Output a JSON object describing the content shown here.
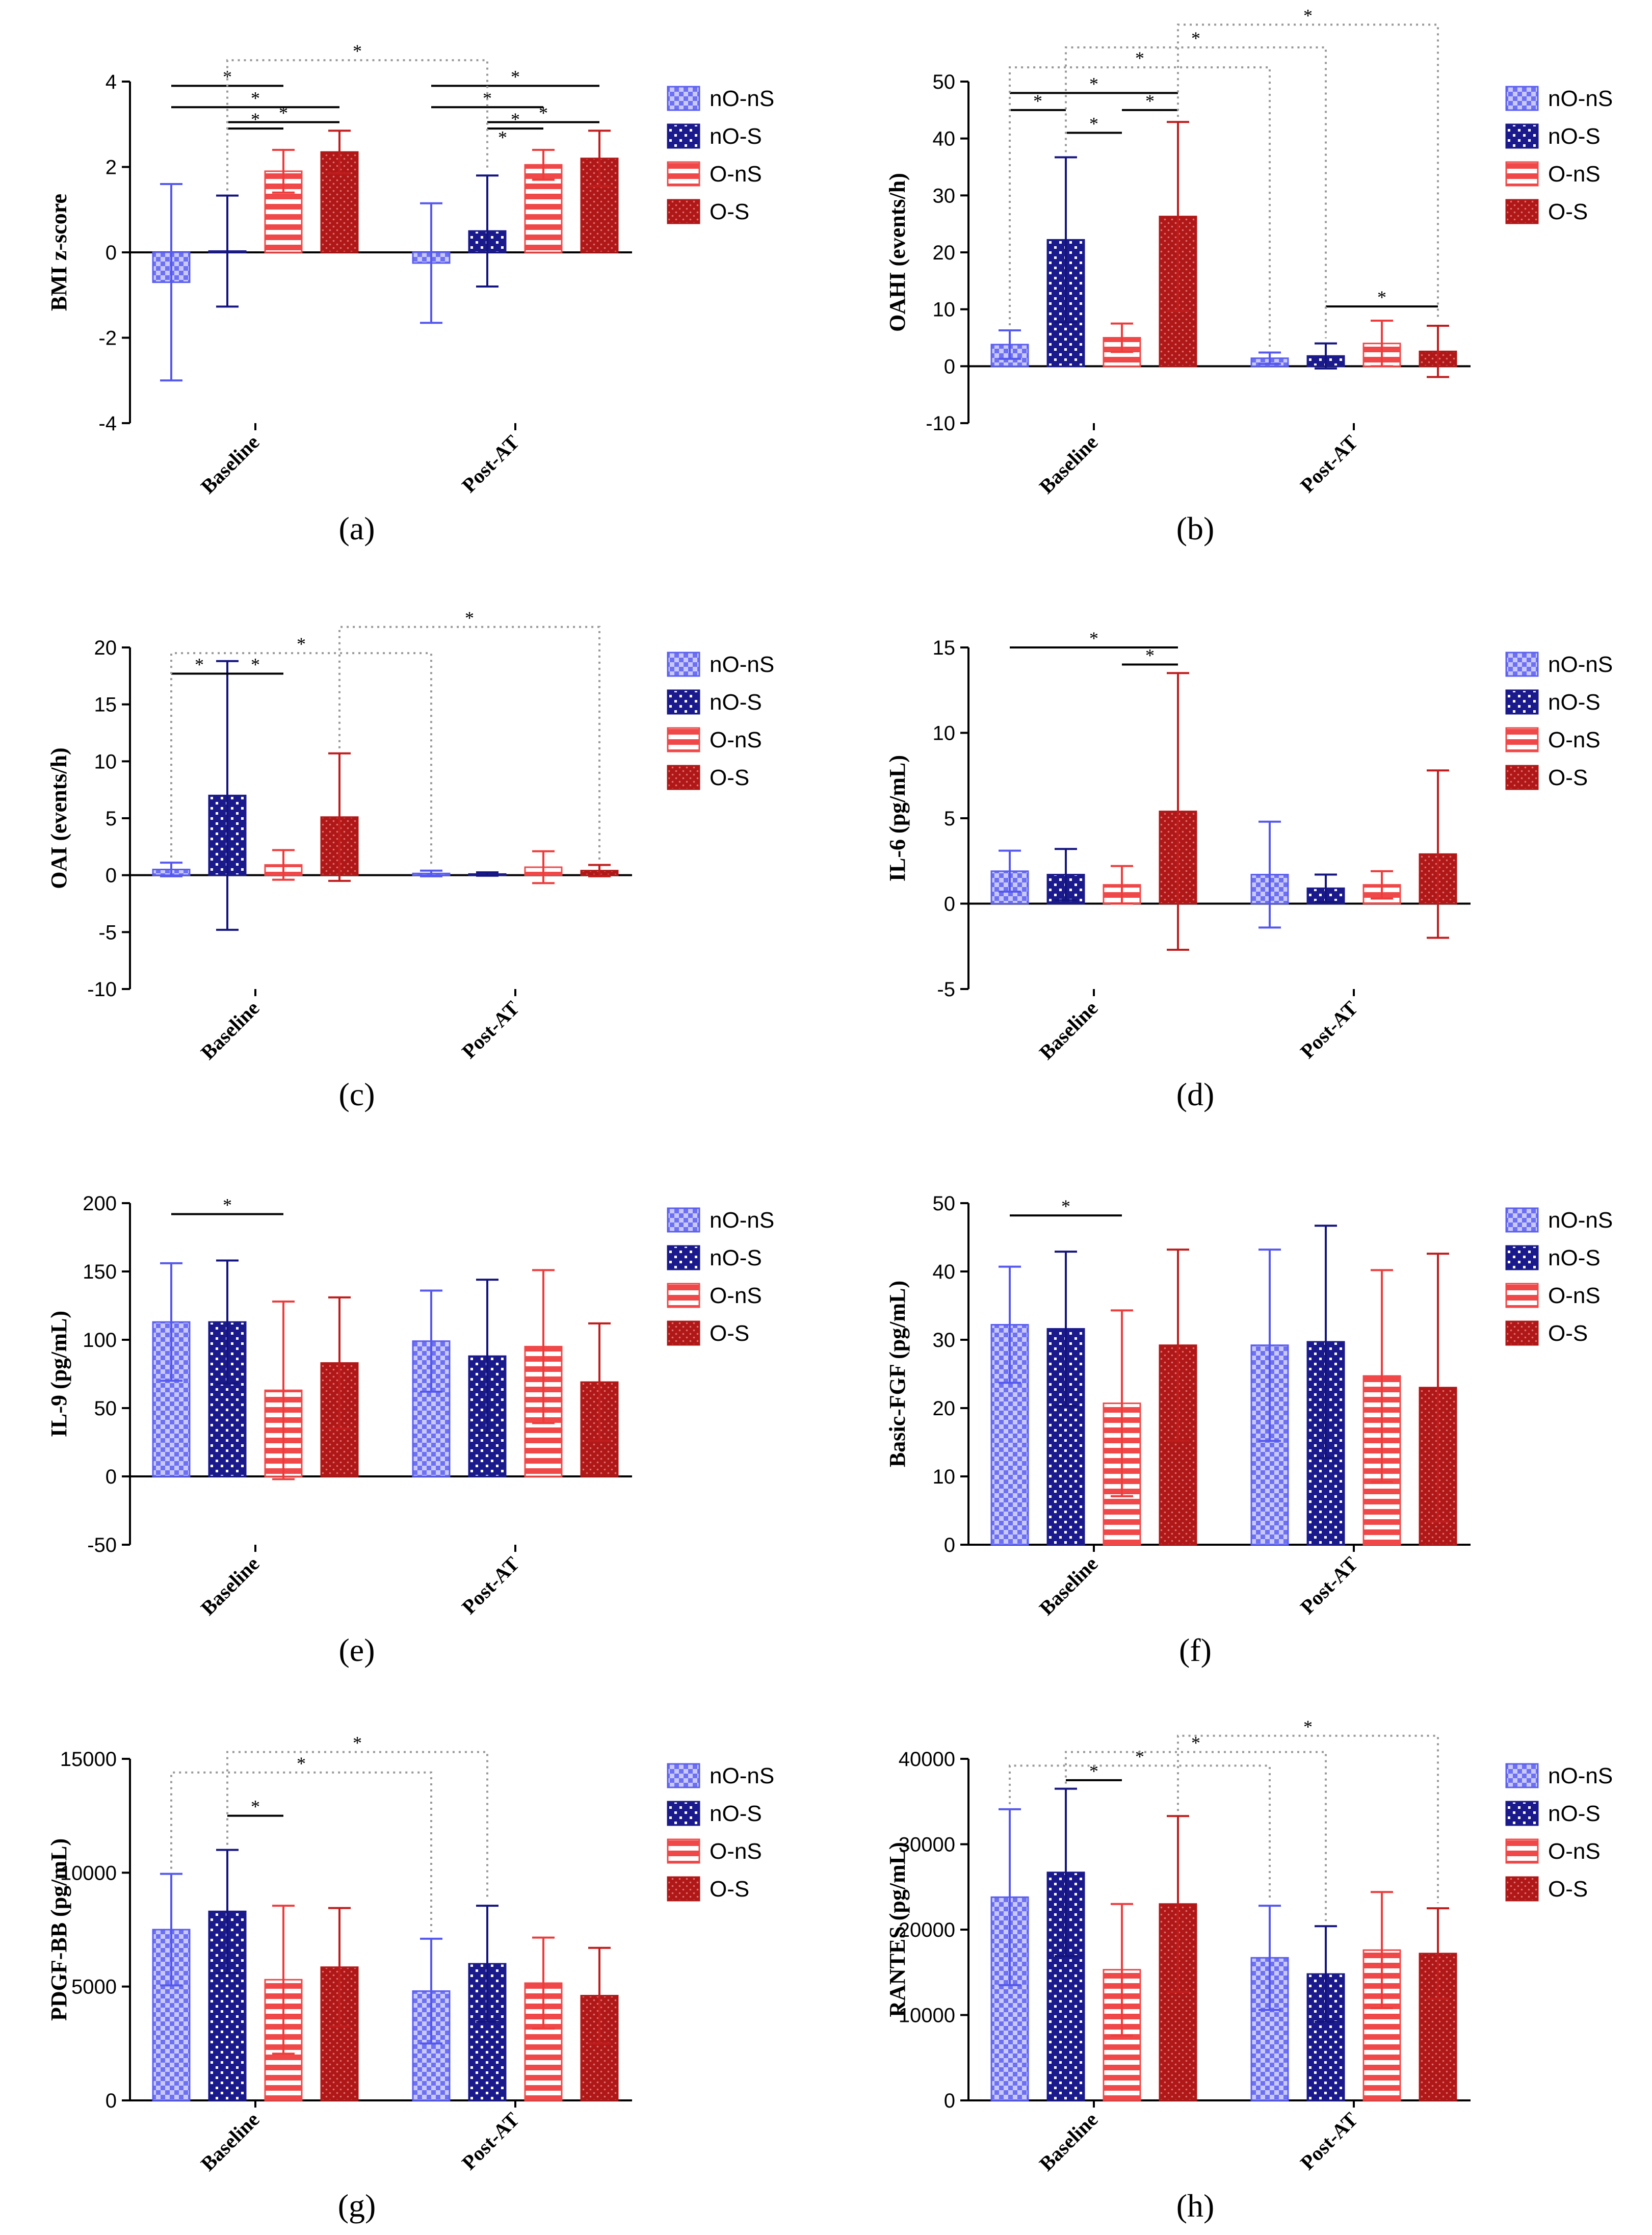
{
  "figure": {
    "group_names": [
      "nO-nS",
      "nO-S",
      "O-nS",
      "O-S"
    ],
    "legend": [
      "nO-nS",
      "nO-S",
      "O-nS",
      "O-S"
    ],
    "colors": {
      "nO-nS": "#5a5ef0",
      "nO-S": "#1a1a8c",
      "O-nS": "#f04848",
      "O-S": "#b01818"
    }
  },
  "chart_data": [
    {
      "id": "a",
      "panel_label": "(a)",
      "type": "bar",
      "title": "",
      "xlabel": "",
      "ylabel": "BMI z-score",
      "ylim": [
        -4,
        4
      ],
      "ytick_values": [
        -4,
        -2,
        0,
        2,
        4
      ],
      "ytick_labels": [
        "-4",
        "-2",
        "0",
        "2",
        "4"
      ],
      "categories": [
        "Baseline",
        "Post-AT"
      ],
      "series": [
        {
          "name": "nO-nS",
          "values": [
            -0.7,
            -0.25
          ],
          "err": [
            2.3,
            1.4
          ]
        },
        {
          "name": "nO-S",
          "values": [
            0.03,
            0.5
          ],
          "err": [
            1.3,
            1.3
          ]
        },
        {
          "name": "O-nS",
          "values": [
            1.9,
            2.05
          ],
          "err": [
            0.5,
            0.35
          ]
        },
        {
          "name": "O-S",
          "values": [
            2.35,
            2.2
          ],
          "err": [
            0.5,
            0.65
          ]
        }
      ],
      "significance": [
        {
          "from": [
            0,
            0
          ],
          "to": [
            0,
            2
          ],
          "y": 3.9,
          "label": "*",
          "style": "solid"
        },
        {
          "from": [
            0,
            0
          ],
          "to": [
            0,
            3
          ],
          "y": 3.4,
          "label": "*",
          "style": "solid"
        },
        {
          "from": [
            0,
            1
          ],
          "to": [
            0,
            2
          ],
          "y": 2.9,
          "label": "*",
          "style": "solid"
        },
        {
          "from": [
            0,
            1
          ],
          "to": [
            0,
            3
          ],
          "y": 3.05,
          "label": "*",
          "style": "solid"
        },
        {
          "from": [
            1,
            0
          ],
          "to": [
            1,
            2
          ],
          "y": 3.4,
          "label": "*",
          "style": "solid"
        },
        {
          "from": [
            1,
            0
          ],
          "to": [
            1,
            3
          ],
          "y": 3.9,
          "label": "*",
          "style": "solid"
        },
        {
          "from": [
            1,
            1
          ],
          "to": [
            1,
            2
          ],
          "y": 2.9,
          "label": "*",
          "style": "solid"
        },
        {
          "from": [
            1,
            1
          ],
          "to": [
            1,
            3
          ],
          "y": 3.05,
          "label": "*",
          "style": "solid"
        },
        {
          "from": [
            0,
            1
          ],
          "to": [
            1,
            1
          ],
          "y": 4.5,
          "label": "*",
          "style": "dotted"
        }
      ],
      "extra_marks": [
        {
          "group": [
            1,
            1
          ],
          "y": 2.55,
          "label": "*"
        }
      ]
    },
    {
      "id": "b",
      "panel_label": "(b)",
      "type": "bar",
      "title": "",
      "xlabel": "",
      "ylabel": "OAHI (events/h)",
      "ylim": [
        -10,
        50
      ],
      "ytick_values": [
        -10,
        0,
        10,
        20,
        30,
        40,
        50
      ],
      "ytick_labels": [
        "-10",
        "0",
        "10",
        "20",
        "30",
        "40",
        "50"
      ],
      "categories": [
        "Baseline",
        "Post-AT"
      ],
      "series": [
        {
          "name": "nO-nS",
          "values": [
            3.8,
            1.4
          ],
          "err": [
            2.5,
            1.0
          ]
        },
        {
          "name": "nO-S",
          "values": [
            22.2,
            1.8
          ],
          "err": [
            14.5,
            2.2
          ]
        },
        {
          "name": "O-nS",
          "values": [
            5.0,
            4.0
          ],
          "err": [
            2.5,
            4.0
          ]
        },
        {
          "name": "O-S",
          "values": [
            26.3,
            2.6
          ],
          "err": [
            16.6,
            4.5
          ]
        }
      ],
      "significance": [
        {
          "from": [
            0,
            0
          ],
          "to": [
            0,
            1
          ],
          "y": 45,
          "label": "*",
          "style": "solid"
        },
        {
          "from": [
            0,
            0
          ],
          "to": [
            0,
            3
          ],
          "y": 48,
          "label": "*",
          "style": "solid"
        },
        {
          "from": [
            0,
            1
          ],
          "to": [
            0,
            2
          ],
          "y": 41,
          "label": "*",
          "style": "solid"
        },
        {
          "from": [
            0,
            2
          ],
          "to": [
            0,
            3
          ],
          "y": 45,
          "label": "*",
          "style": "solid"
        },
        {
          "from": [
            1,
            1
          ],
          "to": [
            1,
            3
          ],
          "y": 10.5,
          "label": "*",
          "style": "solid"
        },
        {
          "from": [
            0,
            0
          ],
          "to": [
            1,
            0
          ],
          "y": 52.5,
          "label": "*",
          "style": "dotted"
        },
        {
          "from": [
            0,
            1
          ],
          "to": [
            1,
            1
          ],
          "y": 56,
          "label": "*",
          "style": "dotted"
        },
        {
          "from": [
            0,
            3
          ],
          "to": [
            1,
            3
          ],
          "y": 60,
          "label": "*",
          "style": "dotted"
        }
      ],
      "extra_marks": []
    },
    {
      "id": "c",
      "panel_label": "(c)",
      "type": "bar",
      "title": "",
      "xlabel": "",
      "ylabel": "OAI (events/h)",
      "ylim": [
        -10,
        20
      ],
      "ytick_values": [
        -10,
        -5,
        0,
        5,
        10,
        15,
        20
      ],
      "ytick_labels": [
        "-10",
        "-5",
        "0",
        "5",
        "10",
        "15",
        "20"
      ],
      "categories": [
        "Baseline",
        "Post-AT"
      ],
      "series": [
        {
          "name": "nO-nS",
          "values": [
            0.5,
            0.15
          ],
          "err": [
            0.6,
            0.25
          ]
        },
        {
          "name": "nO-S",
          "values": [
            7.0,
            0.1
          ],
          "err": [
            11.8,
            0.15
          ]
        },
        {
          "name": "O-nS",
          "values": [
            0.9,
            0.7
          ],
          "err": [
            1.3,
            1.4
          ]
        },
        {
          "name": "O-S",
          "values": [
            5.1,
            0.4
          ],
          "err": [
            5.6,
            0.5
          ]
        }
      ],
      "significance": [
        {
          "from": [
            0,
            0
          ],
          "to": [
            0,
            1
          ],
          "y": 17.7,
          "label": "*",
          "style": "solid"
        },
        {
          "from": [
            0,
            1
          ],
          "to": [
            0,
            2
          ],
          "y": 17.7,
          "label": "*",
          "style": "solid"
        },
        {
          "from": [
            0,
            0
          ],
          "to": [
            1,
            0
          ],
          "y": 19.5,
          "label": "*",
          "style": "dotted"
        },
        {
          "from": [
            0,
            3
          ],
          "to": [
            1,
            3
          ],
          "y": 21.8,
          "label": "*",
          "style": "dotted"
        }
      ],
      "extra_marks": []
    },
    {
      "id": "d",
      "panel_label": "(d)",
      "type": "bar",
      "title": "",
      "xlabel": "",
      "ylabel": "IL-6 (pg/mL)",
      "ylim": [
        -5,
        15
      ],
      "ytick_values": [
        -5,
        0,
        5,
        10,
        15
      ],
      "ytick_labels": [
        "-5",
        "0",
        "5",
        "10",
        "15"
      ],
      "categories": [
        "Baseline",
        "Post-AT"
      ],
      "series": [
        {
          "name": "nO-nS",
          "values": [
            1.9,
            1.7
          ],
          "err": [
            1.2,
            3.1
          ]
        },
        {
          "name": "nO-S",
          "values": [
            1.7,
            0.9
          ],
          "err": [
            1.5,
            0.8
          ]
        },
        {
          "name": "O-nS",
          "values": [
            1.1,
            1.1
          ],
          "err": [
            1.1,
            0.8
          ]
        },
        {
          "name": "O-S",
          "values": [
            5.4,
            2.9
          ],
          "err": [
            8.1,
            4.9
          ]
        }
      ],
      "significance": [
        {
          "from": [
            0,
            0
          ],
          "to": [
            0,
            3
          ],
          "y": 15,
          "label": "*",
          "style": "solid"
        },
        {
          "from": [
            0,
            2
          ],
          "to": [
            0,
            3
          ],
          "y": 14,
          "label": "*",
          "style": "solid"
        }
      ],
      "extra_marks": []
    },
    {
      "id": "e",
      "panel_label": "(e)",
      "type": "bar",
      "title": "",
      "xlabel": "",
      "ylabel": "IL-9 (pg/mL)",
      "ylim": [
        -50,
        200
      ],
      "ytick_values": [
        -50,
        0,
        50,
        100,
        150,
        200
      ],
      "ytick_labels": [
        "-50",
        "0",
        "50",
        "100",
        "150",
        "200"
      ],
      "categories": [
        "Baseline",
        "Post-AT"
      ],
      "series": [
        {
          "name": "nO-nS",
          "values": [
            113,
            99
          ],
          "err": [
            43,
            37
          ]
        },
        {
          "name": "nO-S",
          "values": [
            113,
            88
          ],
          "err": [
            45,
            56
          ]
        },
        {
          "name": "O-nS",
          "values": [
            63,
            95
          ],
          "err": [
            65,
            56
          ]
        },
        {
          "name": "O-S",
          "values": [
            83,
            69
          ],
          "err": [
            48,
            43
          ]
        }
      ],
      "significance": [
        {
          "from": [
            0,
            0
          ],
          "to": [
            0,
            2
          ],
          "y": 192,
          "label": "*",
          "style": "solid"
        }
      ],
      "extra_marks": []
    },
    {
      "id": "f",
      "panel_label": "(f)",
      "type": "bar",
      "title": "",
      "xlabel": "",
      "ylabel": "Basic-FGF (pg/mL)",
      "ylim": [
        0,
        50
      ],
      "ytick_values": [
        0,
        10,
        20,
        30,
        40,
        50
      ],
      "ytick_labels": [
        "0",
        "10",
        "20",
        "30",
        "40",
        "50"
      ],
      "categories": [
        "Baseline",
        "Post-AT"
      ],
      "series": [
        {
          "name": "nO-nS",
          "values": [
            32.2,
            29.2
          ],
          "err": [
            8.5,
            14.0
          ]
        },
        {
          "name": "nO-S",
          "values": [
            31.6,
            29.7
          ],
          "err": [
            11.3,
            17.0
          ]
        },
        {
          "name": "O-nS",
          "values": [
            20.7,
            24.7
          ],
          "err": [
            13.6,
            15.5
          ]
        },
        {
          "name": "O-S",
          "values": [
            29.2,
            23.0
          ],
          "err": [
            14.0,
            19.6
          ]
        }
      ],
      "significance": [
        {
          "from": [
            0,
            0
          ],
          "to": [
            0,
            2
          ],
          "y": 48.2,
          "label": "*",
          "style": "solid"
        }
      ],
      "extra_marks": []
    },
    {
      "id": "g",
      "panel_label": "(g)",
      "type": "bar",
      "title": "",
      "xlabel": "",
      "ylabel": "PDGF-BB (pg/mL)",
      "ylim": [
        0,
        15000
      ],
      "ytick_values": [
        0,
        5000,
        10000,
        15000
      ],
      "ytick_labels": [
        "0",
        "5000",
        "10000",
        "15000"
      ],
      "categories": [
        "Baseline",
        "Post-AT"
      ],
      "series": [
        {
          "name": "nO-nS",
          "values": [
            7500,
            4800
          ],
          "err": [
            2450,
            2300
          ]
        },
        {
          "name": "nO-S",
          "values": [
            8300,
            6000
          ],
          "err": [
            2700,
            2550
          ]
        },
        {
          "name": "O-nS",
          "values": [
            5300,
            5150
          ],
          "err": [
            3250,
            2000
          ]
        },
        {
          "name": "O-S",
          "values": [
            5850,
            4600
          ],
          "err": [
            2600,
            2100
          ]
        }
      ],
      "significance": [
        {
          "from": [
            0,
            1
          ],
          "to": [
            0,
            2
          ],
          "y": 12500,
          "label": "*",
          "style": "solid"
        },
        {
          "from": [
            0,
            0
          ],
          "to": [
            1,
            0
          ],
          "y": 14400,
          "label": "*",
          "style": "dotted"
        },
        {
          "from": [
            0,
            1
          ],
          "to": [
            1,
            1
          ],
          "y": 15300,
          "label": "*",
          "style": "dotted"
        }
      ],
      "extra_marks": []
    },
    {
      "id": "h",
      "panel_label": "(h)",
      "type": "bar",
      "title": "",
      "xlabel": "",
      "ylabel": "RANTES (pg/mL)",
      "ylim": [
        0,
        40000
      ],
      "ytick_values": [
        0,
        10000,
        20000,
        30000,
        40000
      ],
      "ytick_labels": [
        "0",
        "10000",
        "20000",
        "30000",
        "40000"
      ],
      "categories": [
        "Baseline",
        "Post-AT"
      ],
      "series": [
        {
          "name": "nO-nS",
          "values": [
            23800,
            16700
          ],
          "err": [
            10300,
            6100
          ]
        },
        {
          "name": "nO-S",
          "values": [
            26700,
            14800
          ],
          "err": [
            9800,
            5600
          ]
        },
        {
          "name": "O-nS",
          "values": [
            15300,
            17600
          ],
          "err": [
            7700,
            6800
          ]
        },
        {
          "name": "O-S",
          "values": [
            23000,
            17200
          ],
          "err": [
            10300,
            5300
          ]
        }
      ],
      "significance": [
        {
          "from": [
            0,
            1
          ],
          "to": [
            0,
            2
          ],
          "y": 37500,
          "label": "*",
          "style": "solid"
        },
        {
          "from": [
            0,
            0
          ],
          "to": [
            1,
            0
          ],
          "y": 39200,
          "label": "*",
          "style": "dotted"
        },
        {
          "from": [
            0,
            1
          ],
          "to": [
            1,
            1
          ],
          "y": 40800,
          "label": "*",
          "style": "dotted"
        },
        {
          "from": [
            0,
            3
          ],
          "to": [
            1,
            3
          ],
          "y": 42700,
          "label": "*",
          "style": "dotted"
        }
      ],
      "extra_marks": []
    }
  ]
}
